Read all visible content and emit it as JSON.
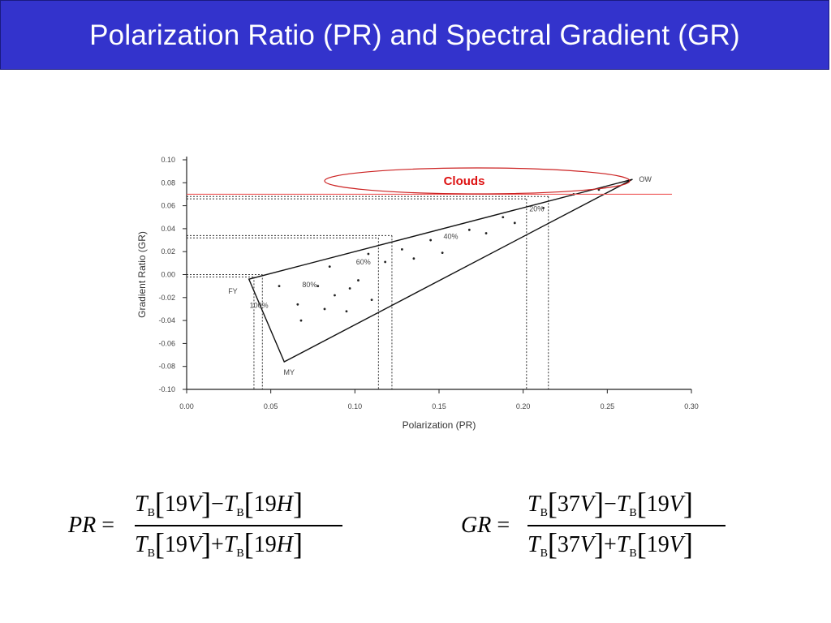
{
  "slide": {
    "title": "Polarization Ratio (PR) and Spectral Gradient (GR)"
  },
  "chart_data": {
    "type": "scatter",
    "xlabel": "Polarization (PR)",
    "ylabel": "Gradient Ratio (GR)",
    "xlim": [
      0.0,
      0.3
    ],
    "ylim": [
      -0.1,
      0.1
    ],
    "x_ticks": [
      0.0,
      0.05,
      0.1,
      0.15,
      0.2,
      0.25,
      0.3
    ],
    "x_tick_labels": [
      "0.00",
      "0.05",
      "0.10",
      "0.15",
      "0.20",
      "0.25",
      "0.30"
    ],
    "y_ticks": [
      0.1,
      0.08,
      0.06,
      0.04,
      0.02,
      0.0,
      -0.02,
      -0.04,
      -0.06,
      -0.08,
      -0.1
    ],
    "y_tick_labels": [
      "0.10",
      "0.08",
      "0.06",
      "0.04",
      "0.02",
      "0.00",
      "-0.02",
      "-0.04",
      "-0.06",
      "-0.08",
      "-0.10"
    ],
    "grid": false,
    "triangle": {
      "vertices": [
        {
          "label": "OW",
          "x": 0.265,
          "y": 0.083
        },
        {
          "label": "FY",
          "x": 0.037,
          "y": -0.004
        },
        {
          "label": "MY",
          "x": 0.058,
          "y": -0.076
        }
      ]
    },
    "ice_fraction_labels": [
      {
        "label": "20%",
        "x": 0.208,
        "y": 0.055
      },
      {
        "label": "40%",
        "x": 0.157,
        "y": 0.031
      },
      {
        "label": "60%",
        "x": 0.105,
        "y": 0.009
      },
      {
        "label": "80%",
        "x": 0.073,
        "y": -0.011
      },
      {
        "label": "100%",
        "x": 0.043,
        "y": -0.029
      }
    ],
    "reference_lines": [
      {
        "pr": 0.04,
        "gr": -0.002
      },
      {
        "pr": 0.045,
        "gr": 0.0
      },
      {
        "pr": 0.114,
        "gr": 0.032
      },
      {
        "pr": 0.122,
        "gr": 0.034
      },
      {
        "pr": 0.202,
        "gr": 0.066
      },
      {
        "pr": 0.215,
        "gr": 0.068
      }
    ],
    "clouds_threshold_gr": 0.07,
    "scatter_points": [
      {
        "x": 0.055,
        "y": -0.01
      },
      {
        "x": 0.066,
        "y": -0.026
      },
      {
        "x": 0.068,
        "y": -0.04
      },
      {
        "x": 0.078,
        "y": -0.01
      },
      {
        "x": 0.082,
        "y": -0.03
      },
      {
        "x": 0.085,
        "y": 0.007
      },
      {
        "x": 0.088,
        "y": -0.018
      },
      {
        "x": 0.095,
        "y": -0.032
      },
      {
        "x": 0.097,
        "y": -0.012
      },
      {
        "x": 0.102,
        "y": -0.005
      },
      {
        "x": 0.108,
        "y": 0.018
      },
      {
        "x": 0.11,
        "y": -0.022
      },
      {
        "x": 0.118,
        "y": 0.011
      },
      {
        "x": 0.128,
        "y": 0.022
      },
      {
        "x": 0.135,
        "y": 0.014
      },
      {
        "x": 0.145,
        "y": 0.03
      },
      {
        "x": 0.152,
        "y": 0.019
      },
      {
        "x": 0.168,
        "y": 0.039
      },
      {
        "x": 0.178,
        "y": 0.036
      },
      {
        "x": 0.188,
        "y": 0.05
      },
      {
        "x": 0.195,
        "y": 0.045
      },
      {
        "x": 0.212,
        "y": 0.058
      },
      {
        "x": 0.23,
        "y": 0.07
      },
      {
        "x": 0.245,
        "y": 0.074
      }
    ],
    "annotations": {
      "clouds_label": "Clouds",
      "ellipse_color": "#cc2222",
      "clouds_line_color": "#ee5555"
    }
  },
  "equations": {
    "pr": {
      "lhs": "PR",
      "numerator": {
        "t1": "T",
        "s1": "B",
        "c1": "19",
        "p1": "V",
        "op": "−",
        "t2": "T",
        "s2": "B",
        "c2": "19",
        "p2": "H"
      },
      "denominator": {
        "t1": "T",
        "s1": "B",
        "c1": "19",
        "p1": "V",
        "op": "+",
        "t2": "T",
        "s2": "B",
        "c2": "19",
        "p2": "H"
      }
    },
    "gr": {
      "lhs": "GR",
      "numerator": {
        "t1": "T",
        "s1": "B",
        "c1": "37",
        "p1": "V",
        "op": "−",
        "t2": "T",
        "s2": "B",
        "c2": "19",
        "p2": "V"
      },
      "denominator": {
        "t1": "T",
        "s1": "B",
        "c1": "37",
        "p1": "V",
        "op": "+",
        "t2": "T",
        "s2": "B",
        "c2": "19",
        "p2": "V"
      }
    },
    "equals": "="
  }
}
